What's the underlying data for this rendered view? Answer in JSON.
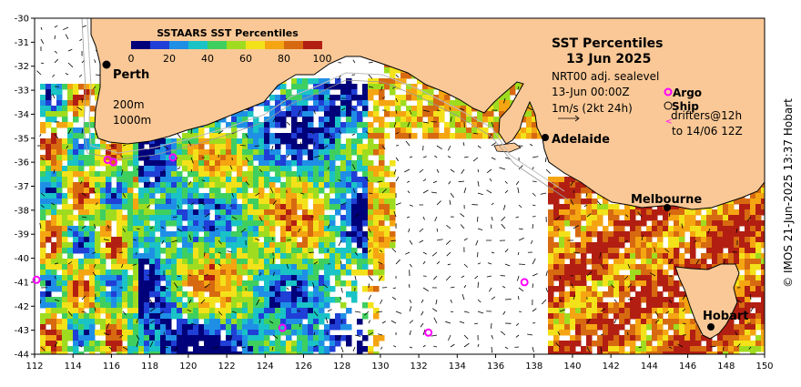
{
  "colorbar": {
    "title": "SSTAARS SST Percentiles",
    "ticks": [
      "0",
      "20",
      "40",
      "60",
      "80",
      "100"
    ],
    "colors": [
      "#00007a",
      "#1f3fd6",
      "#1f8fe6",
      "#19c3c6",
      "#3fcf5f",
      "#9fdc1f",
      "#f3e21a",
      "#f5a512",
      "#d76a10",
      "#b21f12"
    ]
  },
  "header": {
    "title": "SST Percentiles",
    "date": "13 Jun 2025",
    "line1": "NRT00 adj. sealevel",
    "line2": "13-Jun 00:00Z",
    "line3": "1m/s (2kt 24h)",
    "argo": "Argo",
    "ship": "Ship",
    "drifters": "drifters@12h",
    "drifters2": "to 14/06 12Z"
  },
  "depths": {
    "d1": "200m",
    "d2": "1000m"
  },
  "cities": {
    "perth": "Perth",
    "adelaide": "Adelaide",
    "melbourne": "Melbourne",
    "hobart": "Hobart"
  },
  "axes": {
    "x_ticks": [
      "112",
      "114",
      "116",
      "118",
      "120",
      "122",
      "124",
      "126",
      "128",
      "130",
      "132",
      "134",
      "136",
      "138",
      "140",
      "142",
      "144",
      "146",
      "148",
      "150"
    ],
    "y_ticks": [
      "-30",
      "-31",
      "-32",
      "-33",
      "-34",
      "-35",
      "-36",
      "-37",
      "-38",
      "-39",
      "-40",
      "-41",
      "-42",
      "-43",
      "-44"
    ],
    "lon_range": [
      112,
      150
    ],
    "lat_range": [
      -44,
      -30
    ]
  },
  "argo_floats": [
    {
      "lon": 112.1,
      "lat": -40.9
    },
    {
      "lon": 124.9,
      "lat": -42.9
    },
    {
      "lon": 132.5,
      "lat": -43.1
    },
    {
      "lon": 137.5,
      "lat": -41.0
    },
    {
      "lon": 119.2,
      "lat": -35.8
    },
    {
      "lon": 115.8,
      "lat": -35.9
    },
    {
      "lon": 116.1,
      "lat": -36.0
    }
  ],
  "credit": "© IMOS 21-Jun-2025 13:37 Hobart",
  "style": {
    "land": "#fac896",
    "argo": "#ff00ff",
    "frame": "#000000"
  }
}
